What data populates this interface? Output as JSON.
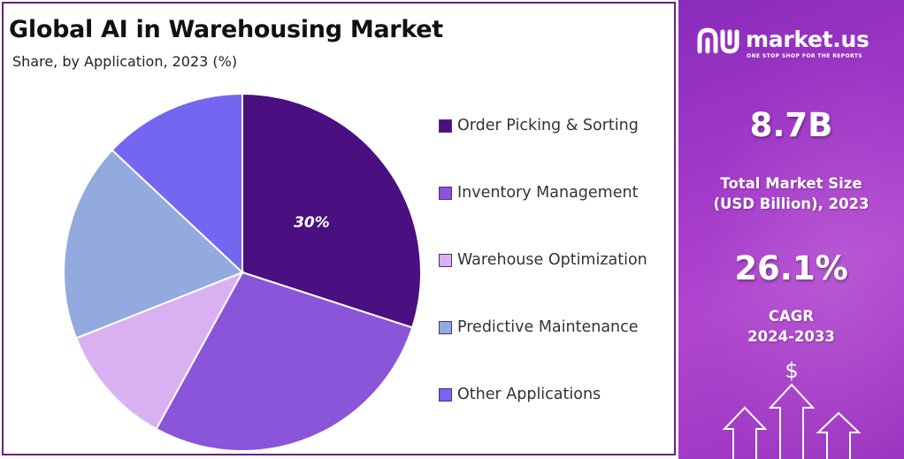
{
  "chart_data": {
    "type": "pie",
    "title": "Global AI in Warehousing Market",
    "subtitle": "Share, by Application, 2023 (%)",
    "categories": [
      "Order Picking & Sorting",
      "Inventory Management",
      "Warehouse Optimization",
      "Predictive Maintenance",
      "Other Applications"
    ],
    "values": [
      30,
      28,
      11,
      18,
      13
    ],
    "colors": [
      "#4a0f80",
      "#8a55d8",
      "#d9b0f2",
      "#93aadf",
      "#7466f0"
    ],
    "data_labels": [
      "30%",
      "",
      "",
      "",
      ""
    ],
    "start_angle_deg": 0,
    "direction": "clockwise",
    "legend": "right"
  },
  "brand": {
    "name": "market.us",
    "tagline": "ONE STOP SHOP FOR THE REPORTS",
    "icon": "market-us-logo-icon"
  },
  "stats": {
    "market_size_value": "8.7B",
    "market_size_label_line1": "Total Market Size",
    "market_size_label_line2": "(USD Billion), 2023",
    "cagr_value": "26.1%",
    "cagr_label_line1": "CAGR",
    "cagr_label_line2": "2024-2033"
  },
  "decoration": {
    "currency_symbol": "$",
    "icon": "growth-arrows-icon"
  }
}
